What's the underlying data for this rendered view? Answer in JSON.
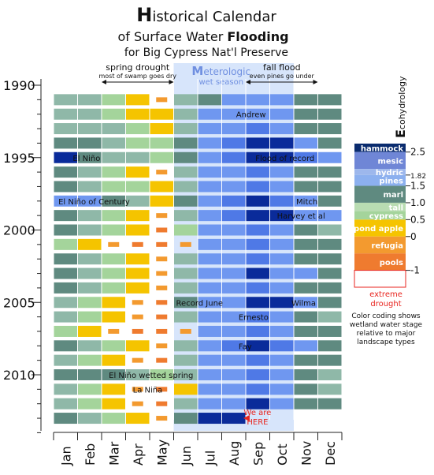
{
  "chart_data": {
    "type": "heatmap",
    "title": {
      "line1_cap": "H",
      "line1_rest": "istorical Calendar",
      "line2_pre": "of Surface Water ",
      "line2_bold": "Flooding",
      "line3": "for Big Cypress Nat'l Preserve"
    },
    "y_axis": {
      "first_year": 1990,
      "last_year": 2013,
      "tick_labels": [
        "1990",
        "1995",
        "2000",
        "2005",
        "2010"
      ]
    },
    "months": [
      "Jan",
      "Feb",
      "Mar",
      "Apr",
      "May",
      "Jun",
      "Jul",
      "Aug",
      "Sep",
      "Oct",
      "Nov",
      "Dec"
    ],
    "season_band": {
      "title_cap": "M",
      "title_rest": "eterologic",
      "subtitle": "wet season",
      "start_month": 5.0,
      "end_month": 10.0
    },
    "top_annotations": [
      {
        "title": "spring drought",
        "sub": "most of swamp goes dry",
        "from_month": 2.0,
        "to_month": 5.0
      },
      {
        "title": "fall flood",
        "sub": "even pines go under",
        "from_month": 8.0,
        "to_month": 11.0
      }
    ],
    "events": [
      {
        "text": "Andrew",
        "year": 1992,
        "month": 7.6,
        "color": "#111111"
      },
      {
        "text": "El Niño",
        "year": 1995,
        "month": 0.8,
        "color": "#111111"
      },
      {
        "text": "Flood of record",
        "year": 1995,
        "month": 8.4,
        "color": "#111111"
      },
      {
        "text": "El Niño of Century",
        "year": 1998,
        "month": 0.2,
        "color": "#111111"
      },
      {
        "text": "Mitch",
        "year": 1998,
        "month": 10.1,
        "color": "#111111"
      },
      {
        "text": "Harvey et al",
        "year": 1999,
        "month": 9.3,
        "color": "#111111"
      },
      {
        "text": "Record June",
        "year": 2005,
        "month": 5.1,
        "color": "#111111"
      },
      {
        "text": "Wilma",
        "year": 2005,
        "month": 9.9,
        "color": "#111111"
      },
      {
        "text": "Ernesto",
        "year": 2006,
        "month": 7.7,
        "color": "#111111"
      },
      {
        "text": "Fay",
        "year": 2008,
        "month": 7.7,
        "color": "#111111"
      },
      {
        "text": "El Niño wetted spring",
        "year": 2010,
        "month": 2.3,
        "color": "#111111"
      },
      {
        "text": "La Niña",
        "year": 2011,
        "month": 3.3,
        "color": "#111111"
      }
    ],
    "here_marker": {
      "line1": "We are",
      "line2": "HERE",
      "year": 2013,
      "month": 7.9,
      "color": "#e8251f"
    },
    "legend": {
      "title_cap": "E",
      "title_rest": "cohydrology",
      "note": [
        "Color coding shows",
        "wetland water stage",
        "relative to major",
        "landscape types"
      ],
      "ticks": [
        {
          "label": "2.5",
          "value": 2.5
        },
        {
          "label": "1.82",
          "value": 1.82
        },
        {
          "label": "1.5",
          "value": 1.5
        },
        {
          "label": "1.0",
          "value": 1.0
        },
        {
          "label": "0.5",
          "value": 0.5
        },
        {
          "label": "0",
          "value": 0
        },
        {
          "label": "-1",
          "value": -1
        }
      ],
      "classes": [
        {
          "label": "hammock",
          "min": 2.5,
          "max": 2.75,
          "color": "#0a2b6e"
        },
        {
          "label": "mesic",
          "min": 2.0,
          "max": 2.5,
          "color": "#6f86d6"
        },
        {
          "label": "hydric",
          "min": 1.82,
          "max": 2.0,
          "color": "#9db7ec"
        },
        {
          "label": "pines",
          "min": 1.5,
          "max": 1.82,
          "color": "#8cb0ef"
        },
        {
          "label": "marl",
          "min": 1.0,
          "max": 1.5,
          "color": "#5f8a80"
        },
        {
          "label": "tall",
          "min": 0.75,
          "max": 1.0,
          "color": "#b9dcb2"
        },
        {
          "label": "cypress",
          "min": 0.5,
          "max": 0.75,
          "color": "#a4d49b"
        },
        {
          "label": "pond apple",
          "min": 0,
          "max": 0.5,
          "color": "#f5c400"
        },
        {
          "label": "refugia",
          "min": -0.5,
          "max": 0,
          "color": "#f39a2f"
        },
        {
          "label": "pools",
          "min": -1,
          "max": -0.5,
          "color": "#ef7b2f"
        },
        {
          "label": "extreme drought",
          "min": -1.5,
          "max": -1,
          "color": "#ffffff"
        }
      ]
    },
    "cell_levels": {
      "note": "Monthly water-stage class per year (0=dry/pools, 1=refugia, 2=pond apple, 3=cypress, 4=tall cypress/marl, 5=marl dark, 6=hydric pines, 7=mesic, 8=hammock/deep flood)",
      "1991": [
        4,
        4,
        3,
        2,
        1,
        4,
        5,
        6,
        6,
        6,
        5,
        5
      ],
      "1992": [
        4,
        4,
        3,
        2,
        2,
        4,
        6,
        6,
        6,
        6,
        5,
        5
      ],
      "1993": [
        4,
        4,
        4,
        3,
        2,
        4,
        6,
        6,
        7,
        6,
        5,
        5
      ],
      "1994": [
        5,
        5,
        4,
        3,
        3,
        5,
        6,
        7,
        8,
        8,
        6,
        5
      ],
      "1995": [
        8,
        5,
        4,
        4,
        3,
        5,
        6,
        7,
        8,
        8,
        7,
        6
      ],
      "1996": [
        5,
        4,
        3,
        2,
        1,
        4,
        6,
        6,
        7,
        6,
        5,
        5
      ],
      "1997": [
        5,
        4,
        3,
        3,
        2,
        4,
        6,
        6,
        7,
        6,
        5,
        5
      ],
      "1998": [
        6,
        6,
        5,
        4,
        2,
        5,
        6,
        7,
        8,
        7,
        6,
        5
      ],
      "1999": [
        5,
        4,
        3,
        2,
        1,
        4,
        6,
        7,
        8,
        8,
        6,
        6
      ],
      "2000": [
        5,
        4,
        3,
        2,
        0,
        3,
        6,
        6,
        7,
        6,
        5,
        4
      ],
      "2001": [
        3,
        2,
        1,
        0,
        0,
        1,
        6,
        6,
        7,
        6,
        5,
        5
      ],
      "2002": [
        5,
        4,
        3,
        2,
        1,
        4,
        6,
        6,
        7,
        6,
        5,
        5
      ],
      "2003": [
        5,
        4,
        3,
        2,
        1,
        4,
        6,
        6,
        8,
        6,
        6,
        5
      ],
      "2004": [
        5,
        4,
        3,
        2,
        1,
        4,
        6,
        6,
        7,
        6,
        5,
        5
      ],
      "2005": [
        4,
        3,
        2,
        1,
        0,
        5,
        6,
        6,
        8,
        8,
        6,
        5
      ],
      "2006": [
        4,
        3,
        2,
        1,
        0,
        4,
        6,
        6,
        7,
        6,
        5,
        4
      ],
      "2007": [
        3,
        2,
        1,
        0,
        0,
        1,
        6,
        6,
        7,
        6,
        5,
        5
      ],
      "2008": [
        5,
        4,
        3,
        2,
        1,
        4,
        6,
        7,
        8,
        7,
        6,
        5
      ],
      "2009": [
        4,
        3,
        2,
        1,
        0,
        4,
        6,
        6,
        7,
        6,
        5,
        5
      ],
      "2010": [
        5,
        5,
        5,
        4,
        3,
        4,
        6,
        6,
        7,
        6,
        5,
        4
      ],
      "2011": [
        4,
        3,
        2,
        1,
        0,
        2,
        6,
        6,
        7,
        6,
        5,
        4
      ],
      "2012": [
        4,
        3,
        2,
        1,
        0,
        4,
        6,
        6,
        8,
        6,
        5,
        5
      ],
      "2013": [
        5,
        4,
        3,
        2,
        1,
        5,
        8,
        8
      ]
    },
    "level_colors": [
      "#ef7b2f",
      "#f39a2f",
      "#f5c400",
      "#a4d49b",
      "#8fb8a8",
      "#5f8a80",
      "#6f97f0",
      "#4f79e6",
      "#0a2b9a"
    ]
  }
}
